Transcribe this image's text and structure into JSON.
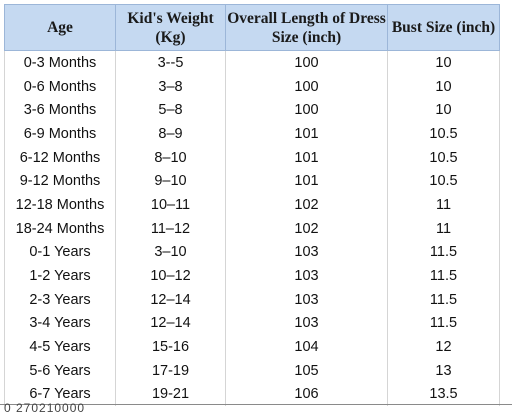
{
  "headers": {
    "age": "Age",
    "weight": "Kid's Weight (Kg)",
    "length": "Overall Length of Dress Size (inch)",
    "bust": "Bust Size (inch)"
  },
  "rows": [
    {
      "age": "0-3 Months",
      "weight": "3--5",
      "length": "100",
      "bust": "10"
    },
    {
      "age": "0-6 Months",
      "weight": "3–8",
      "length": "100",
      "bust": "10"
    },
    {
      "age": "3-6 Months",
      "weight": "5–8",
      "length": "100",
      "bust": "10"
    },
    {
      "age": "6-9 Months",
      "weight": "8–9",
      "length": "101",
      "bust": "10.5"
    },
    {
      "age": "6-12 Months",
      "weight": "8–10",
      "length": "101",
      "bust": "10.5"
    },
    {
      "age": "9-12 Months",
      "weight": "9–10",
      "length": "101",
      "bust": "10.5"
    },
    {
      "age": "12-18 Months",
      "weight": "10–11",
      "length": "102",
      "bust": "11"
    },
    {
      "age": "18-24 Months",
      "weight": "11–12",
      "length": "102",
      "bust": "11"
    },
    {
      "age": "0-1 Years",
      "weight": "3–10",
      "length": "103",
      "bust": "11.5"
    },
    {
      "age": "1-2 Years",
      "weight": "10–12",
      "length": "103",
      "bust": "11.5"
    },
    {
      "age": "2-3 Years",
      "weight": "12–14",
      "length": "103",
      "bust": "11.5"
    },
    {
      "age": "3-4 Years",
      "weight": "12–14",
      "length": "103",
      "bust": "11.5"
    },
    {
      "age": "4-5 Years",
      "weight": "15-16",
      "length": "104",
      "bust": "12"
    },
    {
      "age": "5-6 Years",
      "weight": "17-19",
      "length": "105",
      "bust": "13"
    },
    {
      "age": "6-7 Years",
      "weight": "19-21",
      "length": "106",
      "bust": "13.5"
    }
  ],
  "footer_text": "0 270210000",
  "colors": {
    "header_bg": "#c5d9f1",
    "text": "#111111",
    "page_bg": "#ffffff"
  }
}
